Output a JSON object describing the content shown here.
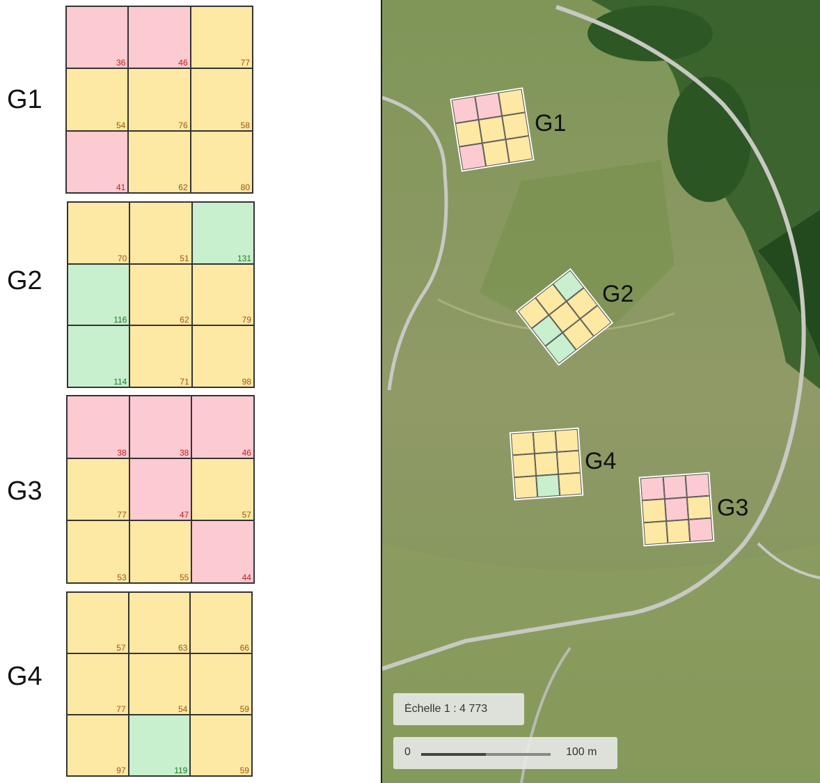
{
  "panels": [
    {
      "label": "G1",
      "cells": [
        {
          "v": "36",
          "c": "r"
        },
        {
          "v": "46",
          "c": "r"
        },
        {
          "v": "77",
          "c": "y"
        },
        {
          "v": "54",
          "c": "y"
        },
        {
          "v": "76",
          "c": "y"
        },
        {
          "v": "58",
          "c": "y"
        },
        {
          "v": "41",
          "c": "r"
        },
        {
          "v": "62",
          "c": "y"
        },
        {
          "v": "80",
          "c": "y"
        }
      ]
    },
    {
      "label": "G2",
      "cells": [
        {
          "v": "70",
          "c": "y"
        },
        {
          "v": "51",
          "c": "y"
        },
        {
          "v": "131",
          "c": "g"
        },
        {
          "v": "116",
          "c": "g"
        },
        {
          "v": "62",
          "c": "y"
        },
        {
          "v": "79",
          "c": "y"
        },
        {
          "v": "114",
          "c": "g"
        },
        {
          "v": "71",
          "c": "y"
        },
        {
          "v": "98",
          "c": "y"
        }
      ]
    },
    {
      "label": "G3",
      "cells": [
        {
          "v": "38",
          "c": "r"
        },
        {
          "v": "38",
          "c": "r"
        },
        {
          "v": "46",
          "c": "r"
        },
        {
          "v": "77",
          "c": "y"
        },
        {
          "v": "47",
          "c": "r"
        },
        {
          "v": "57",
          "c": "y"
        },
        {
          "v": "53",
          "c": "y"
        },
        {
          "v": "55",
          "c": "y"
        },
        {
          "v": "44",
          "c": "r"
        }
      ]
    },
    {
      "label": "G4",
      "cells": [
        {
          "v": "57",
          "c": "y"
        },
        {
          "v": "63",
          "c": "y"
        },
        {
          "v": "66",
          "c": "y"
        },
        {
          "v": "77",
          "c": "y"
        },
        {
          "v": "54",
          "c": "y"
        },
        {
          "v": "59",
          "c": "y"
        },
        {
          "v": "97",
          "c": "y"
        },
        {
          "v": "119",
          "c": "g"
        },
        {
          "v": "59",
          "c": "y"
        }
      ]
    }
  ],
  "map": {
    "labels": [
      "G1",
      "G2",
      "G4",
      "G3"
    ],
    "scale_text": "Échelle 1 : 4 773",
    "scalebar_start": "0",
    "scalebar_end": "100 m"
  },
  "colors": {
    "yellow": "#fde9a3",
    "red": "#fccbd1",
    "green": "#c8efce"
  }
}
